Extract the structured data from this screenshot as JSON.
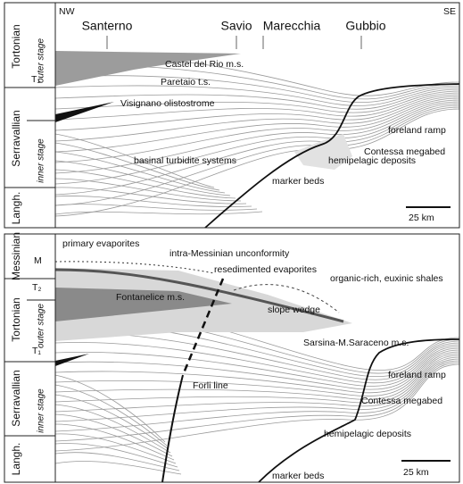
{
  "top_panel": {
    "orientation": [
      "NW",
      "SE"
    ],
    "localities": [
      "Santerno",
      "Savio",
      "Marecchia",
      "Gubbio"
    ],
    "stages": [
      "Tortonian",
      "Serravallian",
      "Langh."
    ],
    "substages": [
      "outer stage",
      "inner stage"
    ],
    "units": [
      "T₁"
    ],
    "labels": [
      "Castel del Rio m.s.",
      "Paretaio t.s.",
      "Visignano olistostrome",
      "foreland ramp",
      "Contessa megabed",
      "basinal turbidite systems",
      "hemipelagic deposits",
      "marker beds"
    ],
    "scale": "25 km"
  },
  "bottom_panel": {
    "stages": [
      "Messinian",
      "Tortonian",
      "Serravallian",
      "Langh."
    ],
    "substages": [
      "outer stage",
      "inner stage"
    ],
    "units": [
      "M",
      "T₂",
      "T₁"
    ],
    "labels": [
      "primary evaporites",
      "intra-Messinian unconformity",
      "resedimented evaporites",
      "organic-rich, euxinic shales",
      "Fontanelice m.s.",
      "slope wedge",
      "Sarsina-M.Saraceno m.s.",
      "Forli line",
      "foreland ramp",
      "Contessa megabed",
      "hemipelagic deposits",
      "marker beds"
    ],
    "scale": "25 km"
  }
}
